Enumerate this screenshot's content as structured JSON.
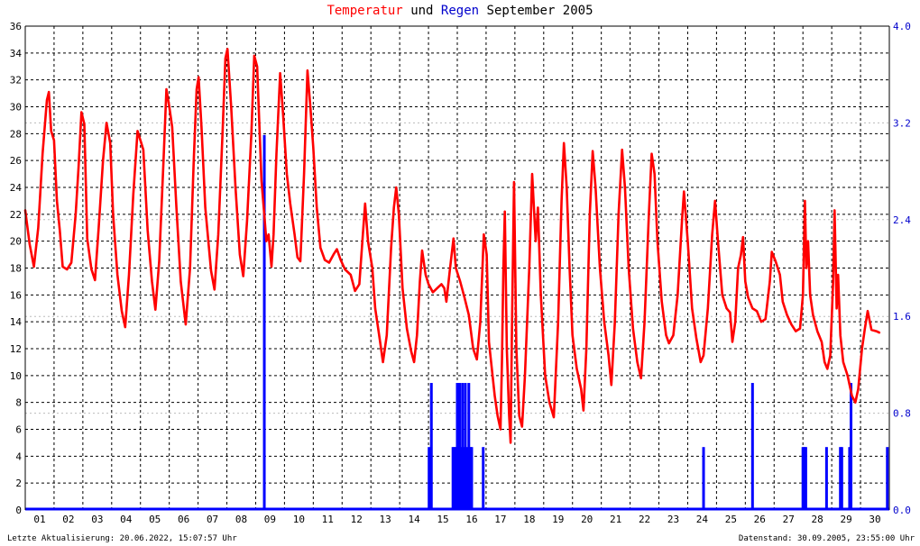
{
  "title": {
    "part_temp": "Temperatur",
    "part_and": "und",
    "part_rain": "Regen",
    "part_period": "September 2005"
  },
  "footer": {
    "left": "Letzte Aktualisierung: 20.06.2022, 15:07:57 Uhr",
    "right": "Datenstand: 30.09.2005, 23:55:00 Uhr"
  },
  "colors": {
    "temperature": "#ff0000",
    "rain": "#0000ff",
    "axis_right": "#0000cc",
    "grid": "#000000"
  },
  "chart_data": {
    "type": "line",
    "title": "Temperatur und Regen September 2005",
    "grid": true,
    "x": {
      "unit": "day",
      "range": [
        1,
        31
      ],
      "tick_labels": [
        "01",
        "02",
        "03",
        "04",
        "05",
        "06",
        "07",
        "08",
        "09",
        "10",
        "11",
        "12",
        "13",
        "14",
        "15",
        "16",
        "17",
        "18",
        "19",
        "20",
        "21",
        "22",
        "23",
        "24",
        "25",
        "26",
        "27",
        "28",
        "29",
        "30"
      ]
    },
    "y_left": {
      "range": [
        0,
        36
      ],
      "ticks": [
        0,
        2,
        4,
        6,
        8,
        10,
        12,
        14,
        16,
        18,
        20,
        22,
        24,
        26,
        28,
        30,
        32,
        34,
        36
      ]
    },
    "y_right": {
      "range": [
        0,
        4.0
      ],
      "ticks": [
        "0.0",
        "0.8",
        "1.6",
        "2.4",
        "3.2",
        "4.0"
      ]
    },
    "series": [
      {
        "kind": "line",
        "axis": "left",
        "points": [
          [
            1.0,
            22.3
          ],
          [
            1.15,
            19.8
          ],
          [
            1.3,
            18.1
          ],
          [
            1.45,
            21.0
          ],
          [
            1.6,
            26.5
          ],
          [
            1.75,
            30.5
          ],
          [
            1.82,
            31.1
          ],
          [
            1.9,
            28.2
          ],
          [
            2.0,
            27.5
          ],
          [
            2.1,
            23.0
          ],
          [
            2.2,
            20.8
          ],
          [
            2.3,
            18.1
          ],
          [
            2.45,
            17.9
          ],
          [
            2.6,
            18.4
          ],
          [
            2.75,
            22.0
          ],
          [
            2.85,
            25.5
          ],
          [
            2.95,
            29.6
          ],
          [
            3.05,
            28.7
          ],
          [
            3.15,
            20.2
          ],
          [
            3.3,
            17.9
          ],
          [
            3.42,
            17.1
          ],
          [
            3.55,
            21.0
          ],
          [
            3.7,
            26.0
          ],
          [
            3.82,
            28.8
          ],
          [
            3.95,
            27.3
          ],
          [
            4.05,
            22.0
          ],
          [
            4.2,
            17.5
          ],
          [
            4.35,
            14.8
          ],
          [
            4.47,
            13.6
          ],
          [
            4.6,
            17.5
          ],
          [
            4.75,
            23.5
          ],
          [
            4.9,
            28.2
          ],
          [
            5.0,
            27.5
          ],
          [
            5.1,
            26.8
          ],
          [
            5.25,
            20.8
          ],
          [
            5.4,
            17.0
          ],
          [
            5.52,
            14.9
          ],
          [
            5.65,
            18.5
          ],
          [
            5.8,
            26.0
          ],
          [
            5.9,
            31.3
          ],
          [
            6.0,
            30.0
          ],
          [
            6.1,
            28.5
          ],
          [
            6.25,
            22.5
          ],
          [
            6.4,
            17.0
          ],
          [
            6.57,
            13.8
          ],
          [
            6.72,
            18.0
          ],
          [
            6.85,
            26.0
          ],
          [
            6.95,
            31.3
          ],
          [
            7.02,
            32.2
          ],
          [
            7.12,
            28.5
          ],
          [
            7.25,
            22.5
          ],
          [
            7.45,
            17.8
          ],
          [
            7.57,
            16.4
          ],
          [
            7.7,
            20.5
          ],
          [
            7.85,
            28.0
          ],
          [
            7.95,
            33.6
          ],
          [
            8.02,
            34.3
          ],
          [
            8.15,
            30.0
          ],
          [
            8.3,
            24.0
          ],
          [
            8.45,
            19.0
          ],
          [
            8.57,
            17.4
          ],
          [
            8.7,
            21.5
          ],
          [
            8.85,
            28.0
          ],
          [
            8.95,
            33.8
          ],
          [
            9.05,
            33.0
          ],
          [
            9.2,
            24.5
          ],
          [
            9.3,
            22.0
          ],
          [
            9.37,
            20.0
          ],
          [
            9.45,
            20.5
          ],
          [
            9.55,
            18.1
          ],
          [
            9.62,
            20.5
          ],
          [
            9.72,
            26.5
          ],
          [
            9.85,
            32.5
          ],
          [
            9.95,
            29.5
          ],
          [
            10.08,
            25.0
          ],
          [
            10.2,
            22.8
          ],
          [
            10.35,
            20.5
          ],
          [
            10.45,
            18.8
          ],
          [
            10.55,
            18.5
          ],
          [
            10.68,
            25.0
          ],
          [
            10.8,
            32.7
          ],
          [
            10.9,
            30.0
          ],
          [
            11.0,
            27.0
          ],
          [
            11.12,
            22.5
          ],
          [
            11.25,
            19.5
          ],
          [
            11.4,
            18.6
          ],
          [
            11.55,
            18.4
          ],
          [
            11.7,
            19.0
          ],
          [
            11.82,
            19.4
          ],
          [
            11.95,
            18.6
          ],
          [
            12.1,
            17.9
          ],
          [
            12.3,
            17.5
          ],
          [
            12.45,
            16.3
          ],
          [
            12.6,
            16.8
          ],
          [
            12.72,
            20.5
          ],
          [
            12.8,
            22.8
          ],
          [
            12.9,
            20.0
          ],
          [
            13.05,
            18.0
          ],
          [
            13.15,
            15.0
          ],
          [
            13.3,
            12.8
          ],
          [
            13.42,
            11.0
          ],
          [
            13.55,
            13.0
          ],
          [
            13.7,
            19.5
          ],
          [
            13.8,
            22.5
          ],
          [
            13.88,
            24.0
          ],
          [
            13.97,
            22.0
          ],
          [
            14.1,
            16.5
          ],
          [
            14.25,
            13.5
          ],
          [
            14.4,
            11.8
          ],
          [
            14.5,
            11.0
          ],
          [
            14.6,
            13.0
          ],
          [
            14.7,
            17.0
          ],
          [
            14.78,
            19.3
          ],
          [
            14.9,
            17.5
          ],
          [
            15.0,
            16.8
          ],
          [
            15.15,
            16.2
          ],
          [
            15.3,
            16.5
          ],
          [
            15.45,
            16.8
          ],
          [
            15.55,
            16.5
          ],
          [
            15.62,
            15.5
          ],
          [
            15.75,
            18.0
          ],
          [
            15.87,
            20.2
          ],
          [
            15.95,
            18.0
          ],
          [
            16.1,
            17.0
          ],
          [
            16.25,
            15.8
          ],
          [
            16.4,
            14.5
          ],
          [
            16.55,
            12.0
          ],
          [
            16.68,
            11.2
          ],
          [
            16.8,
            14.0
          ],
          [
            16.92,
            20.5
          ],
          [
            17.02,
            19.0
          ],
          [
            17.1,
            12.5
          ],
          [
            17.2,
            10.5
          ],
          [
            17.3,
            8.5
          ],
          [
            17.4,
            7.0
          ],
          [
            17.5,
            6.0
          ],
          [
            17.55,
            11.0
          ],
          [
            17.6,
            18.0
          ],
          [
            17.65,
            22.2
          ],
          [
            17.72,
            12.0
          ],
          [
            17.8,
            7.0
          ],
          [
            17.85,
            5.0
          ],
          [
            17.9,
            14.0
          ],
          [
            17.97,
            24.4
          ],
          [
            18.05,
            12.0
          ],
          [
            18.15,
            7.0
          ],
          [
            18.25,
            6.2
          ],
          [
            18.35,
            10.0
          ],
          [
            18.5,
            18.0
          ],
          [
            18.6,
            25.0
          ],
          [
            18.72,
            20.0
          ],
          [
            18.8,
            22.5
          ],
          [
            18.9,
            16.0
          ],
          [
            19.05,
            10.0
          ],
          [
            19.2,
            8.0
          ],
          [
            19.35,
            6.9
          ],
          [
            19.5,
            14.0
          ],
          [
            19.62,
            23.0
          ],
          [
            19.7,
            27.3
          ],
          [
            19.8,
            24.0
          ],
          [
            19.9,
            18.0
          ],
          [
            20.0,
            13.0
          ],
          [
            20.15,
            10.5
          ],
          [
            20.3,
            9.0
          ],
          [
            20.38,
            7.4
          ],
          [
            20.48,
            12.0
          ],
          [
            20.6,
            22.0
          ],
          [
            20.7,
            26.7
          ],
          [
            20.8,
            24.0
          ],
          [
            20.95,
            18.0
          ],
          [
            21.1,
            14.0
          ],
          [
            21.25,
            11.5
          ],
          [
            21.35,
            9.3
          ],
          [
            21.47,
            14.0
          ],
          [
            21.6,
            22.0
          ],
          [
            21.72,
            26.8
          ],
          [
            21.82,
            24.0
          ],
          [
            21.95,
            18.0
          ],
          [
            22.1,
            13.5
          ],
          [
            22.25,
            11.0
          ],
          [
            22.38,
            9.8
          ],
          [
            22.5,
            14.0
          ],
          [
            22.65,
            22.0
          ],
          [
            22.75,
            26.5
          ],
          [
            22.85,
            25.0
          ],
          [
            22.95,
            20.0
          ],
          [
            23.1,
            15.5
          ],
          [
            23.25,
            13.0
          ],
          [
            23.35,
            12.4
          ],
          [
            23.5,
            13.0
          ],
          [
            23.65,
            16.0
          ],
          [
            23.8,
            21.5
          ],
          [
            23.87,
            23.7
          ],
          [
            24.0,
            20.0
          ],
          [
            24.15,
            15.0
          ],
          [
            24.3,
            12.8
          ],
          [
            24.45,
            11.0
          ],
          [
            24.55,
            11.5
          ],
          [
            24.7,
            15.0
          ],
          [
            24.85,
            20.5
          ],
          [
            24.95,
            23.0
          ],
          [
            25.05,
            20.0
          ],
          [
            25.2,
            16.0
          ],
          [
            25.35,
            15.0
          ],
          [
            25.47,
            14.7
          ],
          [
            25.55,
            12.5
          ],
          [
            25.65,
            14.0
          ],
          [
            25.75,
            18.0
          ],
          [
            25.85,
            19.0
          ],
          [
            25.92,
            20.3
          ],
          [
            26.0,
            17.0
          ],
          [
            26.1,
            15.8
          ],
          [
            26.25,
            15.0
          ],
          [
            26.4,
            14.8
          ],
          [
            26.55,
            14.0
          ],
          [
            26.7,
            14.2
          ],
          [
            26.85,
            17.0
          ],
          [
            26.92,
            19.2
          ],
          [
            27.05,
            18.5
          ],
          [
            27.2,
            17.5
          ],
          [
            27.3,
            15.5
          ],
          [
            27.45,
            14.5
          ],
          [
            27.6,
            13.8
          ],
          [
            27.75,
            13.3
          ],
          [
            27.9,
            13.5
          ],
          [
            28.0,
            16.0
          ],
          [
            28.07,
            23.0
          ],
          [
            28.12,
            18.0
          ],
          [
            28.18,
            20.0
          ],
          [
            28.25,
            16.0
          ],
          [
            28.35,
            14.5
          ],
          [
            28.5,
            13.3
          ],
          [
            28.65,
            12.5
          ],
          [
            28.75,
            11.0
          ],
          [
            28.85,
            10.5
          ],
          [
            28.95,
            11.5
          ],
          [
            29.05,
            17.0
          ],
          [
            29.1,
            22.3
          ],
          [
            29.17,
            15.0
          ],
          [
            29.22,
            17.5
          ],
          [
            29.3,
            13.0
          ],
          [
            29.4,
            11.0
          ],
          [
            29.55,
            10.0
          ],
          [
            29.7,
            8.5
          ],
          [
            29.82,
            8.0
          ],
          [
            29.92,
            9.0
          ],
          [
            30.05,
            12.0
          ],
          [
            30.15,
            13.5
          ],
          [
            30.25,
            14.8
          ],
          [
            30.38,
            13.4
          ],
          [
            30.55,
            13.3
          ],
          [
            30.65,
            13.2
          ]
        ]
      },
      {
        "kind": "bars",
        "axis": "right",
        "points": [
          [
            9.3,
            3.1
          ],
          [
            15.1,
            1.05
          ],
          [
            15.02,
            0.52
          ],
          [
            15.85,
            0.52
          ],
          [
            15.9,
            0.52
          ],
          [
            15.95,
            0.52
          ],
          [
            16.0,
            1.05
          ],
          [
            16.03,
            1.05
          ],
          [
            16.08,
            1.05
          ],
          [
            16.12,
            0.52
          ],
          [
            16.18,
            1.05
          ],
          [
            16.23,
            0.52
          ],
          [
            16.28,
            1.05
          ],
          [
            16.35,
            0.52
          ],
          [
            16.4,
            1.05
          ],
          [
            16.45,
            0.52
          ],
          [
            16.5,
            0.52
          ],
          [
            16.9,
            0.52
          ],
          [
            24.55,
            0.52
          ],
          [
            26.25,
            1.05
          ],
          [
            28.0,
            0.52
          ],
          [
            28.05,
            0.52
          ],
          [
            28.1,
            0.52
          ],
          [
            28.82,
            0.52
          ],
          [
            29.3,
            0.52
          ],
          [
            29.35,
            0.52
          ],
          [
            29.62,
            0.52
          ],
          [
            29.67,
            1.05
          ],
          [
            30.93,
            0.52
          ]
        ]
      }
    ]
  }
}
